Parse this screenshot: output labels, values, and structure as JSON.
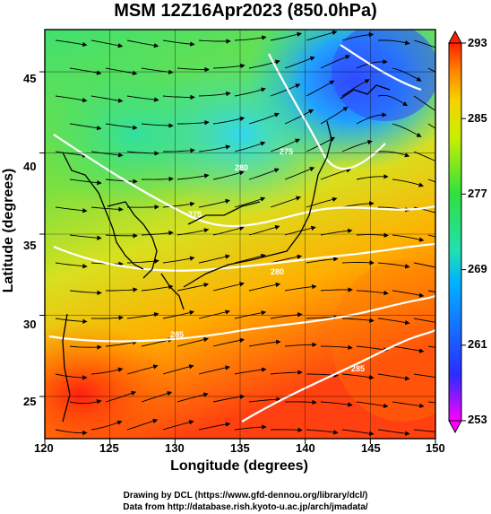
{
  "title": "MSM 12Z16Apr2023 (850.0hPa)",
  "axes": {
    "xlabel": "Longitude (degrees)",
    "ylabel": "Latitude  (degrees)",
    "x_ticks": [
      "120",
      "125",
      "130",
      "135",
      "140",
      "145",
      "150"
    ],
    "y_ticks": [
      "45",
      "40",
      "35",
      "30",
      "25"
    ],
    "xlim": [
      120,
      150
    ],
    "ylim": [
      22.4,
      47.6
    ]
  },
  "colorbar": {
    "ticks": [
      "293",
      "285",
      "277",
      "269",
      "261",
      "253"
    ],
    "range": [
      253,
      293
    ],
    "colors": [
      "#ff00ff",
      "#2b2bff",
      "#00b4ff",
      "#20e0b0",
      "#30e040",
      "#c8f000",
      "#f8d000",
      "#ff8000",
      "#ff2000"
    ]
  },
  "contour_labels": [
    "280",
    "275",
    "275",
    "280",
    "285",
    "285"
  ],
  "credits": {
    "line1": "Drawing by DCL (https://www.gfd-dennou.org/library/dcl/)",
    "line2": "Data from http://database.rish.kyoto-u.ac.jp/arch/jmadata/"
  },
  "chart_data": {
    "type": "heatmap",
    "variable": "850hPa temperature with wind streamlines",
    "title": "MSM 12Z16Apr2023 (850.0hPa)",
    "xlabel": "Longitude (degrees)",
    "ylabel": "Latitude  (degrees)",
    "xlim": [
      120,
      150
    ],
    "ylim": [
      22.4,
      47.6
    ],
    "colorbar_range": [
      253,
      293
    ],
    "temperature_features_K": [
      {
        "lon": 143,
        "lat": 46,
        "value": 265
      },
      {
        "lon": 133,
        "lat": 42,
        "value": 269
      },
      {
        "lon": 124,
        "lat": 45,
        "value": 275
      },
      {
        "lon": 125,
        "lat": 35,
        "value": 279
      },
      {
        "lon": 140,
        "lat": 35,
        "value": 279
      },
      {
        "lon": 135,
        "lat": 30,
        "value": 283
      },
      {
        "lon": 122,
        "lat": 25,
        "value": 291
      },
      {
        "lon": 147,
        "lat": 28,
        "value": 287
      }
    ]
  }
}
